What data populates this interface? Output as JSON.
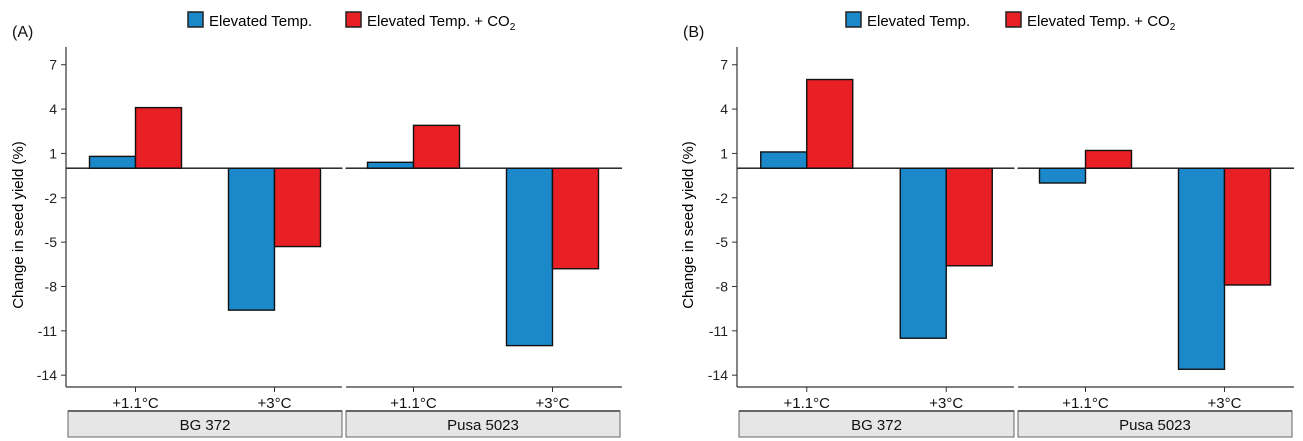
{
  "legend": {
    "items": [
      {
        "label": "Elevated Temp.",
        "color": "#1a88c9"
      },
      {
        "label": "Elevated Temp. + CO",
        "sub": "2",
        "color": "#e81f25"
      }
    ]
  },
  "chart_data": [
    {
      "type": "bar",
      "panel_label": "(A)",
      "ylabel": "Change in seed yield (%)",
      "yticks": [
        7,
        4,
        1,
        -2,
        -5,
        -8,
        -11,
        -14
      ],
      "ylim": [
        -14.8,
        8.2
      ],
      "facets": [
        "BG 372",
        "Pusa 5023"
      ],
      "categories": [
        "+1.1°C",
        "+3°C"
      ],
      "series": [
        {
          "name": "Elevated Temp.",
          "color": "#1a88c9",
          "values": [
            [
              0.8,
              -9.6
            ],
            [
              0.4,
              -12.0
            ]
          ]
        },
        {
          "name": "Elevated Temp. + CO2",
          "color": "#e81f25",
          "values": [
            [
              4.1,
              -5.3
            ],
            [
              2.9,
              -6.8
            ]
          ]
        }
      ],
      "grid": false,
      "legend_position": "top"
    },
    {
      "type": "bar",
      "panel_label": "(B)",
      "ylabel": "Change in seed yield (%)",
      "yticks": [
        7,
        4,
        1,
        -2,
        -5,
        -8,
        -11,
        -14
      ],
      "ylim": [
        -14.8,
        8.2
      ],
      "facets": [
        "BG 372",
        "Pusa 5023"
      ],
      "categories": [
        "+1.1°C",
        "+3°C"
      ],
      "series": [
        {
          "name": "Elevated Temp.",
          "color": "#1a88c9",
          "values": [
            [
              1.1,
              -11.5
            ],
            [
              -1.0,
              -13.6
            ]
          ]
        },
        {
          "name": "Elevated Temp. + CO2",
          "color": "#e81f25",
          "values": [
            [
              6.0,
              -6.6
            ],
            [
              1.2,
              -7.9
            ]
          ]
        }
      ],
      "grid": false,
      "legend_position": "top"
    }
  ]
}
